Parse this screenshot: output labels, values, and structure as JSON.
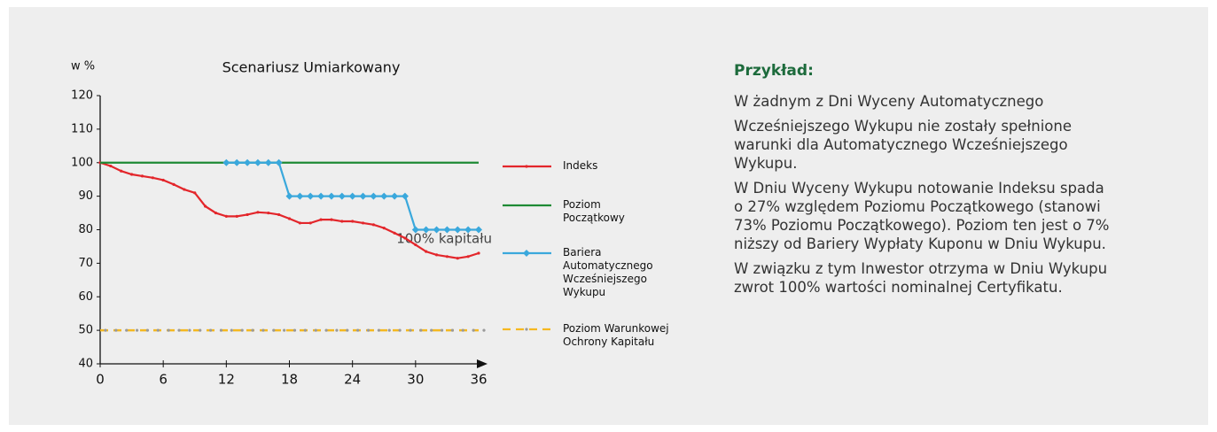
{
  "chart_data": {
    "type": "line",
    "title": "Scenariusz Umiarkowany",
    "ylabel": "w %",
    "annotation": "100% kapitału",
    "x": [
      0,
      1,
      2,
      3,
      4,
      5,
      6,
      7,
      8,
      9,
      10,
      11,
      12,
      13,
      14,
      15,
      16,
      17,
      18,
      19,
      20,
      21,
      22,
      23,
      24,
      25,
      26,
      27,
      28,
      29,
      30,
      31,
      32,
      33,
      34,
      35,
      36
    ],
    "series": [
      {
        "name": "Indeks",
        "color": "#e3262b",
        "marker": "dot",
        "dash": false,
        "values": [
          100,
          99,
          97.5,
          96.5,
          96,
          95.5,
          94.8,
          93.5,
          92,
          91,
          87,
          85,
          84,
          84,
          84.5,
          85.2,
          85,
          84.5,
          83.3,
          82,
          82,
          83,
          83,
          82.5,
          82.5,
          82,
          81.5,
          80.5,
          79,
          77.5,
          75.5,
          73.5,
          72.5,
          72,
          71.5,
          72,
          73
        ]
      },
      {
        "name": "Poziom Początkowy",
        "color": "#1d8a34",
        "marker": "none",
        "dash": false,
        "values": [
          100,
          100,
          100,
          100,
          100,
          100,
          100,
          100,
          100,
          100,
          100,
          100,
          100,
          100,
          100,
          100,
          100,
          100,
          100,
          100,
          100,
          100,
          100,
          100,
          100,
          100,
          100,
          100,
          100,
          100,
          100,
          100,
          100,
          100,
          100,
          100,
          100
        ]
      },
      {
        "name": "Bariera Automatycznego Wcześniejszego Wykupu",
        "color": "#3aa8dc",
        "marker": "diamond",
        "dash": false,
        "values": [
          null,
          null,
          null,
          null,
          null,
          null,
          null,
          null,
          null,
          null,
          null,
          null,
          100,
          100,
          100,
          100,
          100,
          100,
          90,
          90,
          90,
          90,
          90,
          90,
          90,
          90,
          90,
          90,
          90,
          90,
          80,
          80,
          80,
          80,
          80,
          80,
          80
        ]
      },
      {
        "name": "Poziom Warunkowej Ochrony Kapitału",
        "color": "#f5b820",
        "marker": "greydot",
        "dash": true,
        "values": [
          50,
          50,
          50,
          50,
          50,
          50,
          50,
          50,
          50,
          50,
          50,
          50,
          50,
          50,
          50,
          50,
          50,
          50,
          50,
          50,
          50,
          50,
          50,
          50,
          50,
          50,
          50,
          50,
          50,
          50,
          50,
          50,
          50,
          50,
          50,
          50,
          50
        ]
      }
    ],
    "xlim": [
      0,
      36
    ],
    "xticks": [
      0,
      6,
      12,
      18,
      24,
      30,
      36
    ],
    "ylim": [
      40,
      120
    ],
    "yticks": [
      40,
      50,
      60,
      70,
      80,
      90,
      100,
      110,
      120
    ],
    "grid": false
  },
  "panel": {
    "heading": "Przykład:",
    "paragraphs": [
      "W żadnym z Dni Wyceny Automatycznego",
      "Wcześniejszego Wykupu nie zostały spełnione warunki dla Automatycznego Wcześniejszego Wykupu.",
      "W Dniu Wyceny Wykupu notowanie Indeksu spada o 27% względem Poziomu Początkowego (stanowi 73% Poziomu Początkowego). Poziom ten jest o 7% niższy od Bariery Wypłaty Kuponu w Dniu Wykupu.",
      "W związku z tym Inwestor otrzyma w Dniu Wykupu zwrot 100% wartości nominalnej Certyfikatu."
    ]
  }
}
